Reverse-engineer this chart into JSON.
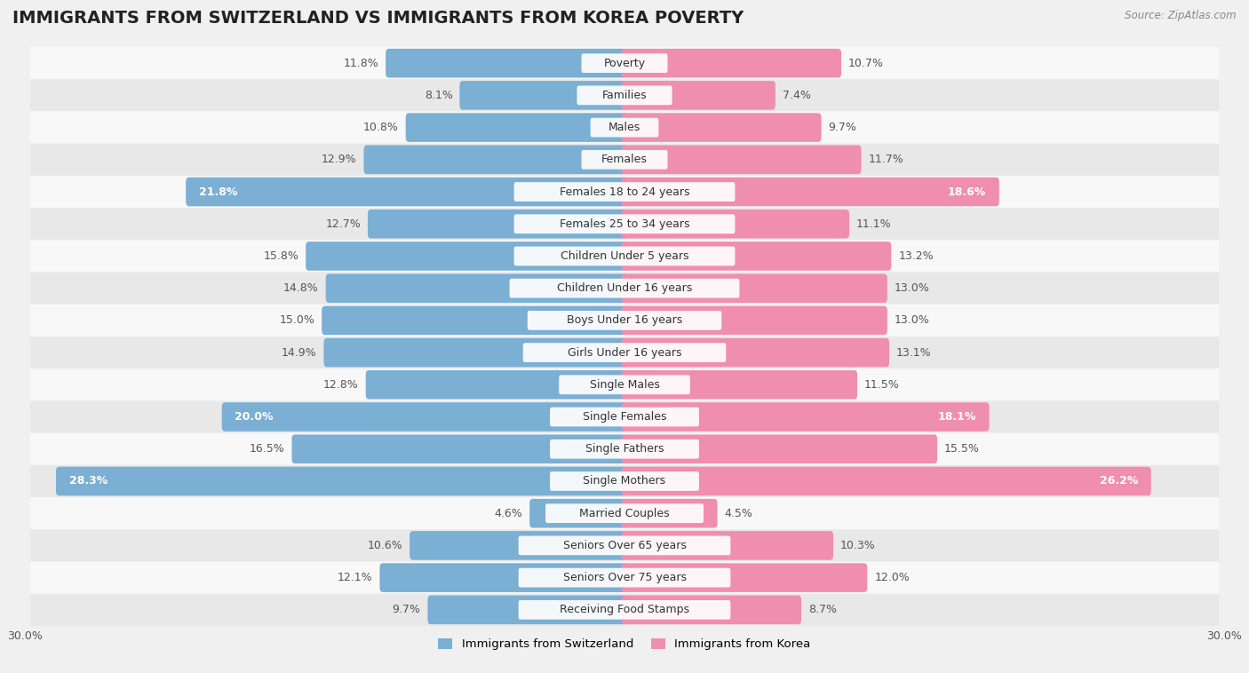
{
  "title": "IMMIGRANTS FROM SWITZERLAND VS IMMIGRANTS FROM KOREA POVERTY",
  "source": "Source: ZipAtlas.com",
  "categories": [
    "Poverty",
    "Families",
    "Males",
    "Females",
    "Females 18 to 24 years",
    "Females 25 to 34 years",
    "Children Under 5 years",
    "Children Under 16 years",
    "Boys Under 16 years",
    "Girls Under 16 years",
    "Single Males",
    "Single Females",
    "Single Fathers",
    "Single Mothers",
    "Married Couples",
    "Seniors Over 65 years",
    "Seniors Over 75 years",
    "Receiving Food Stamps"
  ],
  "switzerland_values": [
    11.8,
    8.1,
    10.8,
    12.9,
    21.8,
    12.7,
    15.8,
    14.8,
    15.0,
    14.9,
    12.8,
    20.0,
    16.5,
    28.3,
    4.6,
    10.6,
    12.1,
    9.7
  ],
  "korea_values": [
    10.7,
    7.4,
    9.7,
    11.7,
    18.6,
    11.1,
    13.2,
    13.0,
    13.0,
    13.1,
    11.5,
    18.1,
    15.5,
    26.2,
    4.5,
    10.3,
    12.0,
    8.7
  ],
  "switzerland_color": "#7BAFD4",
  "korea_color": "#F08EB0",
  "background_color": "#f0f0f0",
  "row_color_light": "#f8f8f8",
  "row_color_dark": "#e8e8e8",
  "xlim": 30.0,
  "legend_labels": [
    "Immigrants from Switzerland",
    "Immigrants from Korea"
  ],
  "title_fontsize": 14,
  "label_fontsize": 9,
  "value_fontsize": 9,
  "bar_height": 0.6
}
